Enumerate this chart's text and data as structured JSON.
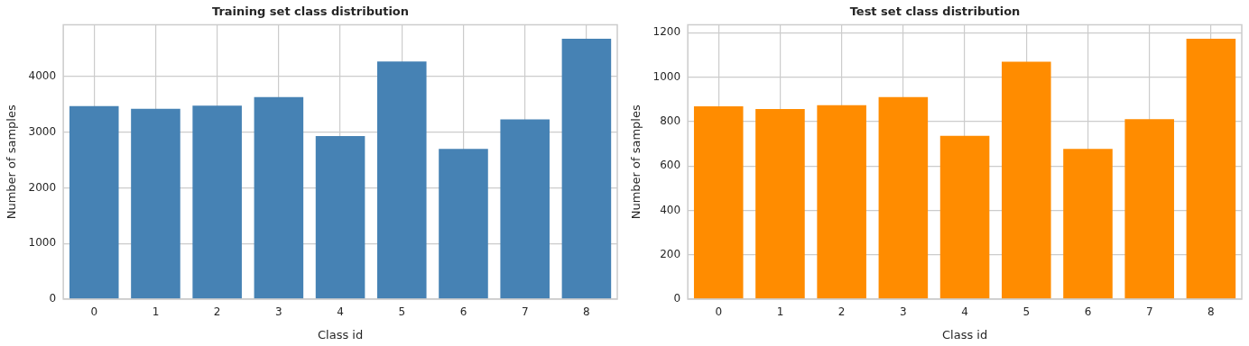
{
  "chart_data": [
    {
      "type": "bar",
      "title": "Training set class distribution",
      "xlabel": "Class id",
      "ylabel": "Number of samples",
      "categories": [
        "0",
        "1",
        "2",
        "3",
        "4",
        "5",
        "6",
        "7",
        "8"
      ],
      "values": [
        3470,
        3420,
        3480,
        3630,
        2930,
        4270,
        2700,
        3230,
        4680
      ],
      "color": "#4682b4",
      "ylim": [
        0,
        4930
      ],
      "yticks": [
        0,
        1000,
        2000,
        3000,
        4000
      ],
      "grid": true
    },
    {
      "type": "bar",
      "title": "Test set class distribution",
      "xlabel": "Class id",
      "ylabel": "Number of samples",
      "categories": [
        "0",
        "1",
        "2",
        "3",
        "4",
        "5",
        "6",
        "7",
        "8"
      ],
      "values": [
        868,
        856,
        873,
        910,
        735,
        1069,
        677,
        810,
        1173
      ],
      "color": "#ff8c00",
      "ylim": [
        0,
        1235
      ],
      "yticks": [
        0,
        200,
        400,
        600,
        800,
        1000,
        1200
      ],
      "grid": true
    }
  ]
}
